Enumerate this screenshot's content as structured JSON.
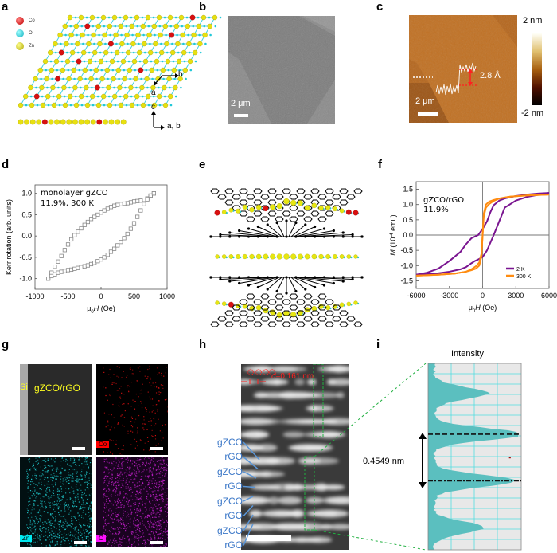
{
  "figure": {
    "panel_labels": [
      "a",
      "b",
      "c",
      "d",
      "e",
      "f",
      "g",
      "h",
      "i"
    ]
  },
  "panel_a": {
    "legend": [
      {
        "label": "Co",
        "color": "#d01010"
      },
      {
        "label": "O",
        "color": "#20c8d8"
      },
      {
        "label": "Zn",
        "color": "#d8d010"
      }
    ],
    "axes_top": {
      "horizontal": "b",
      "diagonal": "a"
    },
    "axes_side": {
      "vertical": "c",
      "horizontal": "a, b"
    }
  },
  "panel_b": {
    "scale_bar": "2 μm"
  },
  "panel_c": {
    "scale_bar": "2 μm",
    "step_height": "2.8 Å",
    "colorbar_max": "2 nm",
    "colorbar_min": "-2 nm"
  },
  "panel_e": {
    "description": "gZCO/rGO stacked heterostructure model"
  },
  "panel_g": {
    "tiles": [
      {
        "label": "gZCO/rGO",
        "sublabel": "Si",
        "color": "#888888"
      },
      {
        "label": "Co",
        "color": "#ff0000"
      },
      {
        "label": "Zn",
        "color": "#00e0e8"
      },
      {
        "label": "C",
        "color": "#ff00ff"
      }
    ]
  },
  "panel_h": {
    "d_label_italic": "d",
    "d_label_value": "=0.161 nm",
    "layer_labels": [
      "gZCO",
      "rGO",
      "gZCO",
      "rGO",
      "gZCO",
      "rGO",
      "gZCO",
      "rGO"
    ]
  },
  "panel_i": {
    "title": "Intensity",
    "spacing_label": "0.4549 nm"
  },
  "chart_data": [
    {
      "id": "d",
      "type": "scatter",
      "title": "",
      "annotation": [
        "monolayer gZCO",
        "11.9%, 300 K"
      ],
      "xlabel_prefix": "μ",
      "xlabel_sub": "0",
      "xlabel_var": "H",
      "xlabel_suffix": " (Oe)",
      "ylabel": "Kerr rotation (arb. units)",
      "xlim": [
        -1000,
        1000
      ],
      "ylim": [
        -1.25,
        1.2
      ],
      "xticks": [
        -1000,
        -500,
        0,
        500,
        1000
      ],
      "xtick_labels": [
        "-1000",
        "-500",
        "0",
        "500",
        "1000"
      ],
      "yticks": [
        -1.0,
        -0.5,
        0.0,
        0.5,
        1.0
      ],
      "ytick_labels": [
        "-1.0",
        "-0.5",
        "0.0",
        "0.5",
        "1.0"
      ],
      "marker": "open-square",
      "series": [
        {
          "name": "descending branch",
          "x": [
            800,
            750,
            700,
            650,
            600,
            550,
            500,
            450,
            400,
            350,
            300,
            250,
            200,
            150,
            100,
            50,
            0,
            -50,
            -100,
            -150,
            -200,
            -250,
            -300,
            -350,
            -400,
            -450,
            -500,
            -550,
            -600,
            -650,
            -700,
            -750,
            -800
          ],
          "y": [
            1.0,
            0.94,
            0.88,
            0.85,
            0.83,
            0.82,
            0.81,
            0.79,
            0.77,
            0.76,
            0.75,
            0.73,
            0.71,
            0.68,
            0.64,
            0.6,
            0.55,
            0.5,
            0.45,
            0.4,
            0.33,
            0.26,
            0.18,
            0.1,
            0.02,
            -0.08,
            -0.2,
            -0.33,
            -0.47,
            -0.6,
            -0.72,
            -0.86,
            -1.0
          ]
        },
        {
          "name": "ascending branch",
          "x": [
            -800,
            -750,
            -700,
            -650,
            -600,
            -550,
            -500,
            -450,
            -400,
            -350,
            -300,
            -250,
            -200,
            -150,
            -100,
            -50,
            0,
            50,
            100,
            150,
            200,
            250,
            300,
            350,
            400,
            450,
            500,
            550,
            600,
            650,
            700,
            750,
            800
          ],
          "y": [
            -1.0,
            -0.94,
            -0.9,
            -0.86,
            -0.84,
            -0.82,
            -0.8,
            -0.79,
            -0.77,
            -0.75,
            -0.73,
            -0.71,
            -0.69,
            -0.66,
            -0.63,
            -0.59,
            -0.55,
            -0.5,
            -0.44,
            -0.37,
            -0.3,
            -0.22,
            -0.14,
            -0.05,
            0.05,
            0.17,
            0.3,
            0.45,
            0.6,
            0.75,
            0.86,
            0.95,
            1.0
          ]
        }
      ]
    },
    {
      "id": "f",
      "type": "line",
      "title": "",
      "annotation": [
        "gZCO/rGO",
        "11.9%"
      ],
      "xlabel_prefix": "μ",
      "xlabel_sub": "0",
      "xlabel_var": "H",
      "xlabel_suffix": " (Oe)",
      "ylabel_var": "M",
      "ylabel_rest": " (10",
      "ylabel_sup": "-4",
      "ylabel_end": " emu)",
      "xlim": [
        -6000,
        6000
      ],
      "ylim": [
        -1.75,
        1.75
      ],
      "xticks": [
        -6000,
        -3000,
        0,
        3000,
        6000
      ],
      "xtick_labels": [
        "-6000",
        "-3000",
        "0",
        "3000",
        "6000"
      ],
      "yticks": [
        -1.5,
        -1.0,
        -0.5,
        0.0,
        0.5,
        1.0,
        1.5
      ],
      "ytick_labels": [
        "-1.5",
        "-1.0",
        "-0.5",
        "0.0",
        "0.5",
        "1.0",
        "1.5"
      ],
      "legend_position": "bottom-right",
      "series": [
        {
          "name": "2 K",
          "color": "#7a1590",
          "x": [
            6000,
            5000,
            4000,
            3000,
            2000,
            1500,
            1000,
            700,
            400,
            0,
            -400,
            -1000,
            -1500,
            -2000,
            -3000,
            -4000,
            -5000,
            -6000
          ],
          "y": [
            1.38,
            1.36,
            1.33,
            1.28,
            1.2,
            1.13,
            0.98,
            0.75,
            0.45,
            0.2,
            0.0,
            -0.1,
            -0.3,
            -0.55,
            -0.85,
            -1.1,
            -1.23,
            -1.3
          ],
          "x2": [
            -6000,
            -5000,
            -4000,
            -3000,
            -2000,
            -1500,
            -1000,
            -700,
            -400,
            0,
            400,
            1000,
            1500,
            2000,
            3000,
            4000,
            5000,
            6000
          ],
          "y2": [
            -1.3,
            -1.28,
            -1.25,
            -1.2,
            -1.12,
            -1.05,
            -0.92,
            -0.85,
            -0.8,
            -0.72,
            -0.5,
            0.0,
            0.45,
            0.9,
            1.13,
            1.25,
            1.32,
            1.38
          ]
        },
        {
          "name": "300 K",
          "color": "#ff8c10",
          "x": [
            6000,
            4000,
            2500,
            1500,
            1000,
            600,
            300,
            100,
            0,
            -100,
            -300,
            -600,
            -1000,
            -1500,
            -2500,
            -4000,
            -6000
          ],
          "y": [
            1.33,
            1.3,
            1.26,
            1.2,
            1.12,
            1.02,
            0.9,
            0.6,
            0.0,
            -0.7,
            -1.0,
            -1.1,
            -1.15,
            -1.2,
            -1.26,
            -1.3,
            -1.33
          ],
          "x2": [
            -6000,
            -4000,
            -2500,
            -1500,
            -1000,
            -600,
            -300,
            -100,
            0,
            100,
            300,
            600,
            1000,
            1500,
            2500,
            4000,
            6000
          ],
          "y2": [
            -1.33,
            -1.3,
            -1.26,
            -1.2,
            -1.12,
            -1.02,
            -0.9,
            -0.6,
            0.0,
            0.7,
            1.0,
            1.1,
            1.15,
            1.2,
            1.26,
            1.3,
            1.33
          ]
        }
      ]
    },
    {
      "id": "i",
      "type": "area",
      "title": "Intensity",
      "orientation": "horizontal-profile",
      "annotation": "0.4549 nm",
      "profile_peaks": [
        {
          "position": 0.16,
          "intensity": 0.6
        },
        {
          "position": 0.38,
          "intensity": 1.0
        },
        {
          "position": 0.63,
          "intensity": 0.9
        },
        {
          "position": 0.88,
          "intensity": 0.55
        }
      ]
    }
  ]
}
